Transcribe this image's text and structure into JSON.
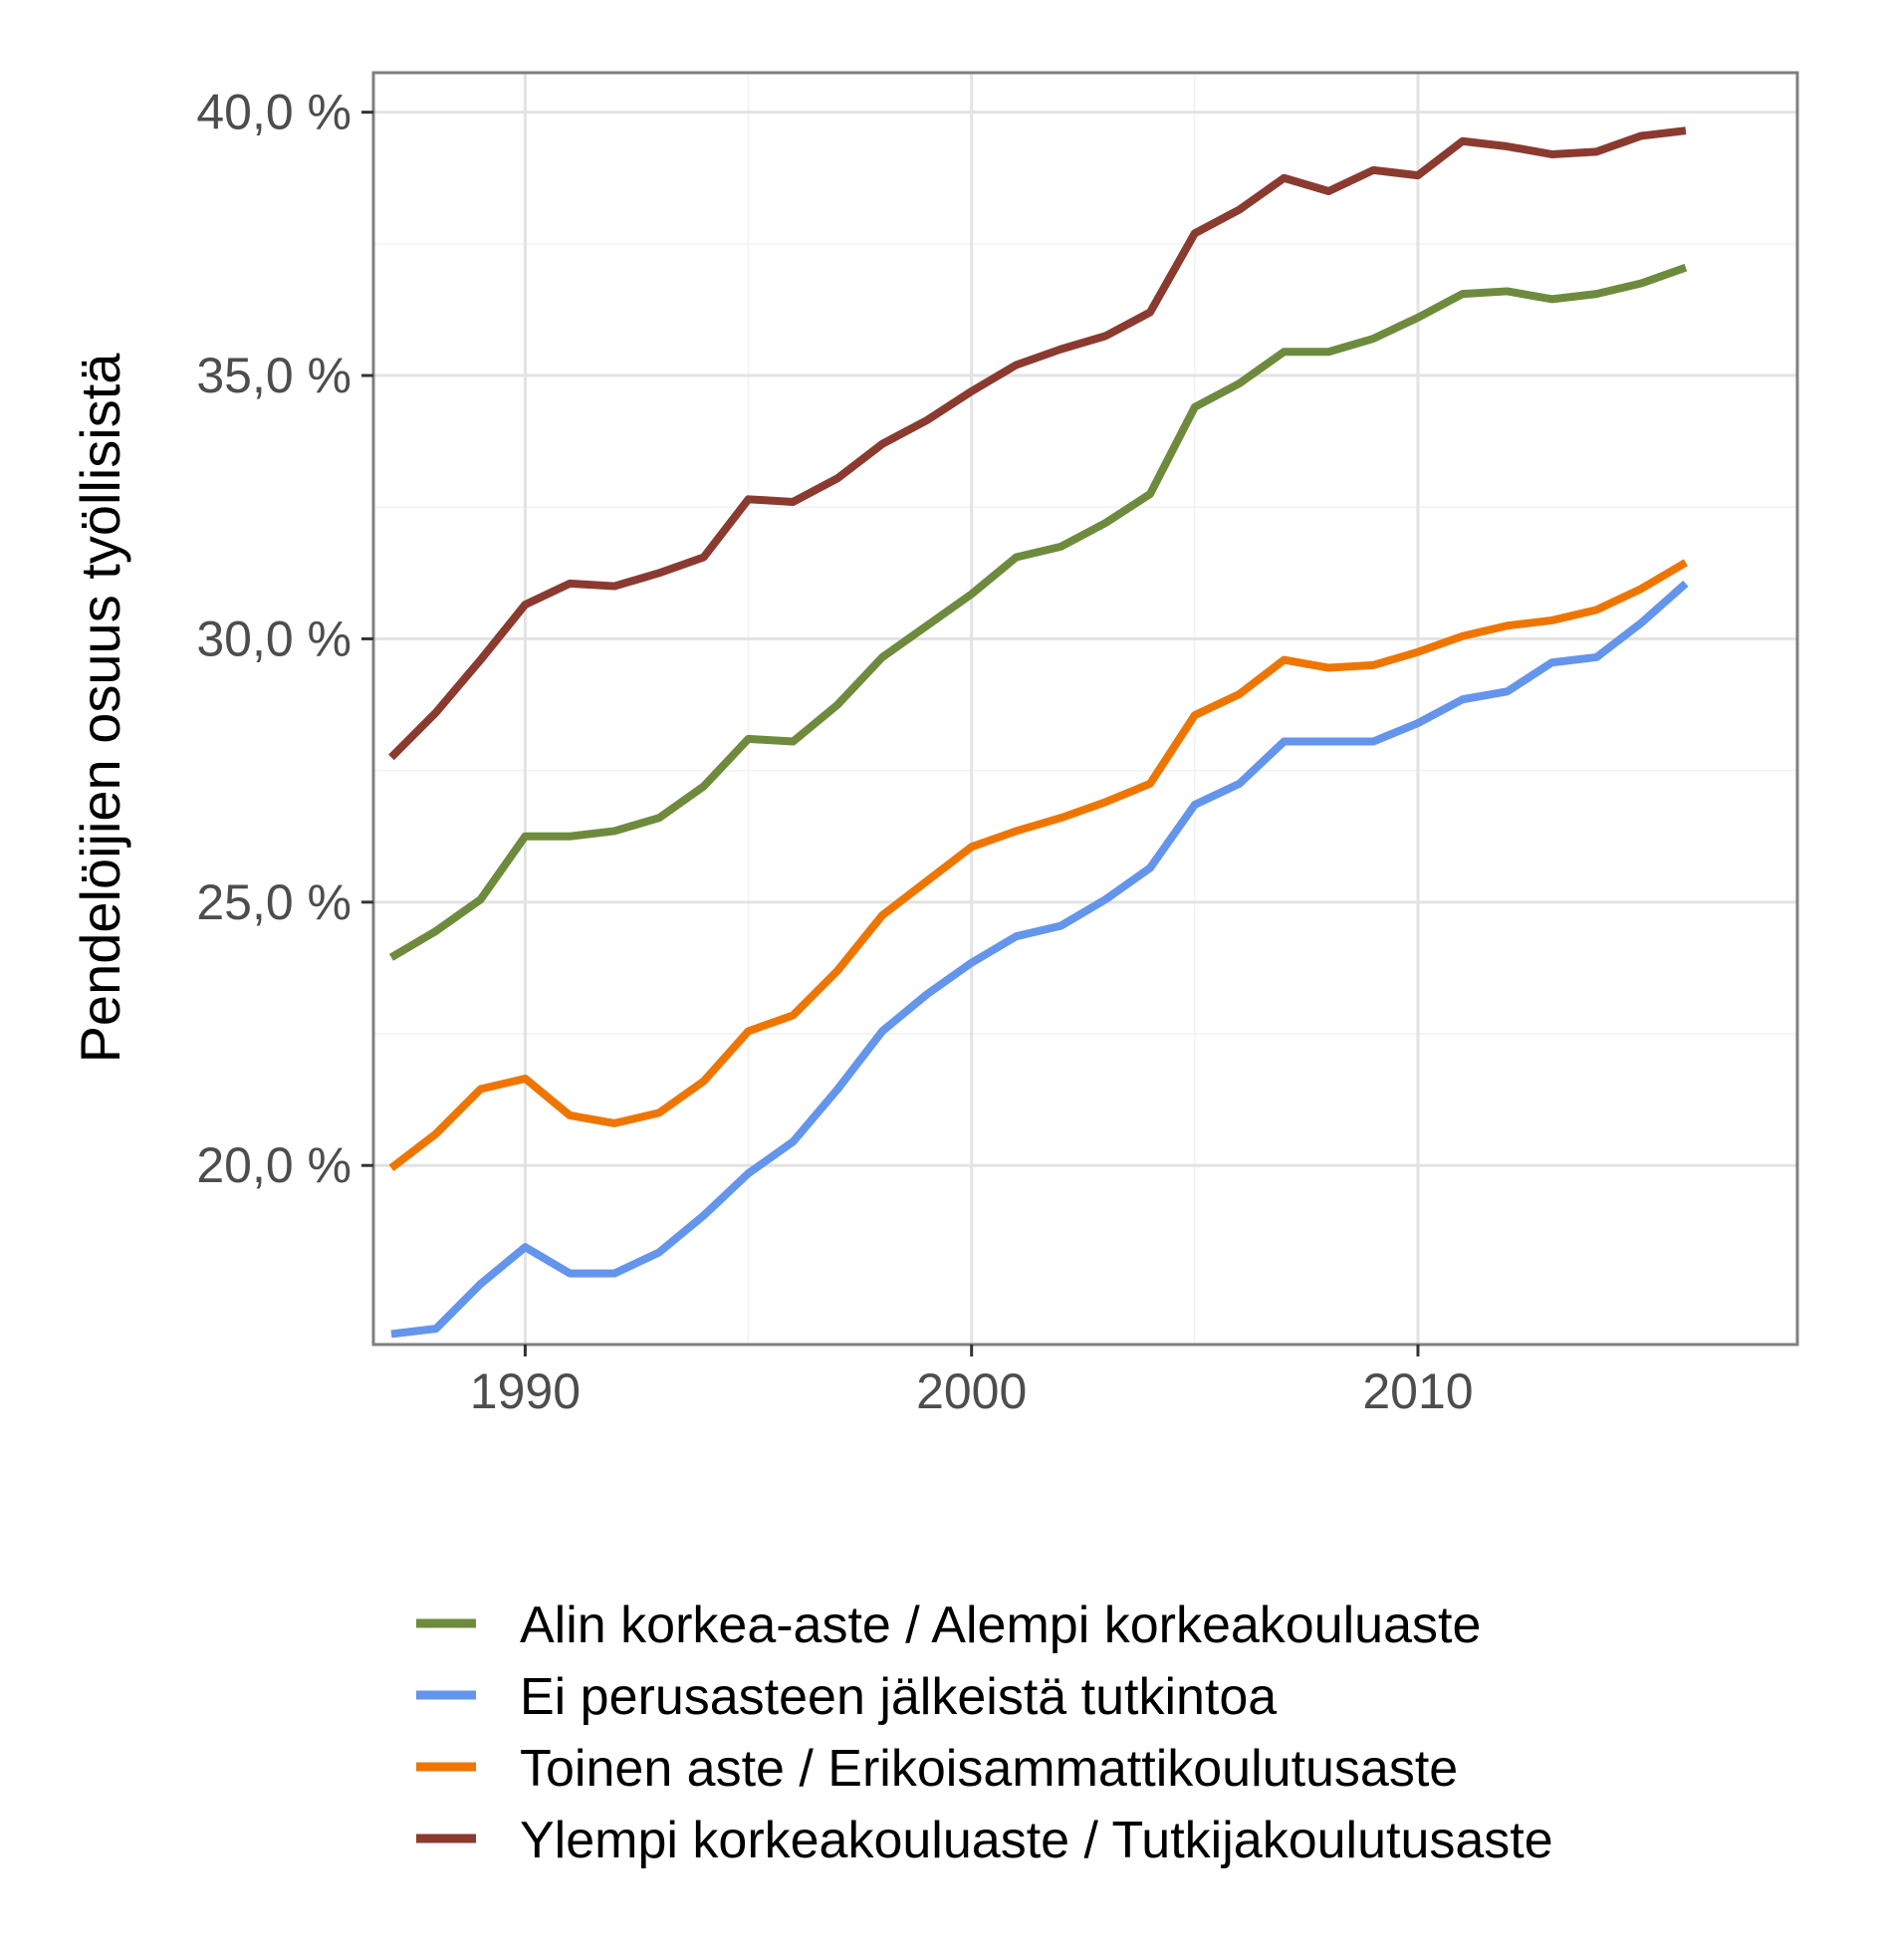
{
  "chart_data": {
    "type": "line",
    "title": "",
    "xlabel": "",
    "ylabel": "Pendelöijien osuus työllisistä",
    "xlim": [
      1986.6,
      2018.5
    ],
    "ylim": [
      16.6,
      40.75
    ],
    "x_ticks": [
      1990,
      2000,
      2010
    ],
    "x_tick_labels": [
      "1990",
      "2000",
      "2010"
    ],
    "y_ticks": [
      20,
      25,
      30,
      35,
      40
    ],
    "y_tick_labels": [
      "20,0 %",
      "25,0 %",
      "30,0 %",
      "35,0 %",
      "40,0 %"
    ],
    "grid": true,
    "legend_position": "bottom",
    "x": [
      1987,
      1988,
      1989,
      1990,
      1991,
      1992,
      1993,
      1994,
      1995,
      1996,
      1997,
      1998,
      1999,
      2000,
      2001,
      2002,
      2003,
      2004,
      2005,
      2006,
      2007,
      2008,
      2009,
      2010,
      2011,
      2012,
      2013,
      2014,
      2015,
      2016
    ],
    "series": [
      {
        "name": "Alin korkea-aste / Alempi korkeakouluaste",
        "color": "#6e8b3d",
        "values": [
          23.95,
          24.45,
          25.05,
          26.25,
          26.25,
          26.35,
          26.6,
          27.2,
          28.1,
          28.05,
          28.75,
          29.65,
          30.25,
          30.85,
          31.55,
          31.75,
          32.2,
          32.75,
          34.4,
          34.85,
          35.45,
          35.45,
          35.7,
          36.1,
          36.55,
          36.6,
          36.45,
          36.55,
          36.75,
          37.05
        ]
      },
      {
        "name": "Ei perusasteen jälkeistä tutkintoa",
        "color": "#6495ed",
        "values": [
          16.8,
          16.9,
          17.75,
          18.45,
          17.95,
          17.95,
          18.35,
          19.05,
          19.85,
          20.45,
          21.45,
          22.55,
          23.25,
          23.85,
          24.35,
          24.55,
          25.05,
          25.65,
          26.85,
          27.25,
          28.05,
          28.05,
          28.05,
          28.4,
          28.85,
          29.0,
          29.55,
          29.65,
          30.3,
          31.05
        ]
      },
      {
        "name": "Toinen aste / Erikoisammattikoulutusaste",
        "color": "#ee7600",
        "values": [
          19.95,
          20.6,
          21.45,
          21.65,
          20.95,
          20.8,
          21.0,
          21.6,
          22.55,
          22.85,
          23.7,
          24.75,
          25.4,
          26.05,
          26.35,
          26.6,
          26.9,
          27.25,
          28.55,
          28.95,
          29.6,
          29.45,
          29.5,
          29.75,
          30.05,
          30.25,
          30.35,
          30.55,
          30.95,
          31.45
        ]
      },
      {
        "name": "Ylempi korkeakouluaste / Tutkijakoulutusaste",
        "color": "#8b3a2f",
        "values": [
          27.75,
          28.6,
          29.6,
          30.65,
          31.05,
          31.0,
          31.25,
          31.55,
          32.65,
          32.6,
          33.05,
          33.7,
          34.15,
          34.7,
          35.2,
          35.5,
          35.75,
          36.2,
          37.7,
          38.15,
          38.75,
          38.5,
          38.9,
          38.8,
          39.45,
          39.35,
          39.2,
          39.25,
          39.55,
          39.65
        ]
      }
    ]
  }
}
